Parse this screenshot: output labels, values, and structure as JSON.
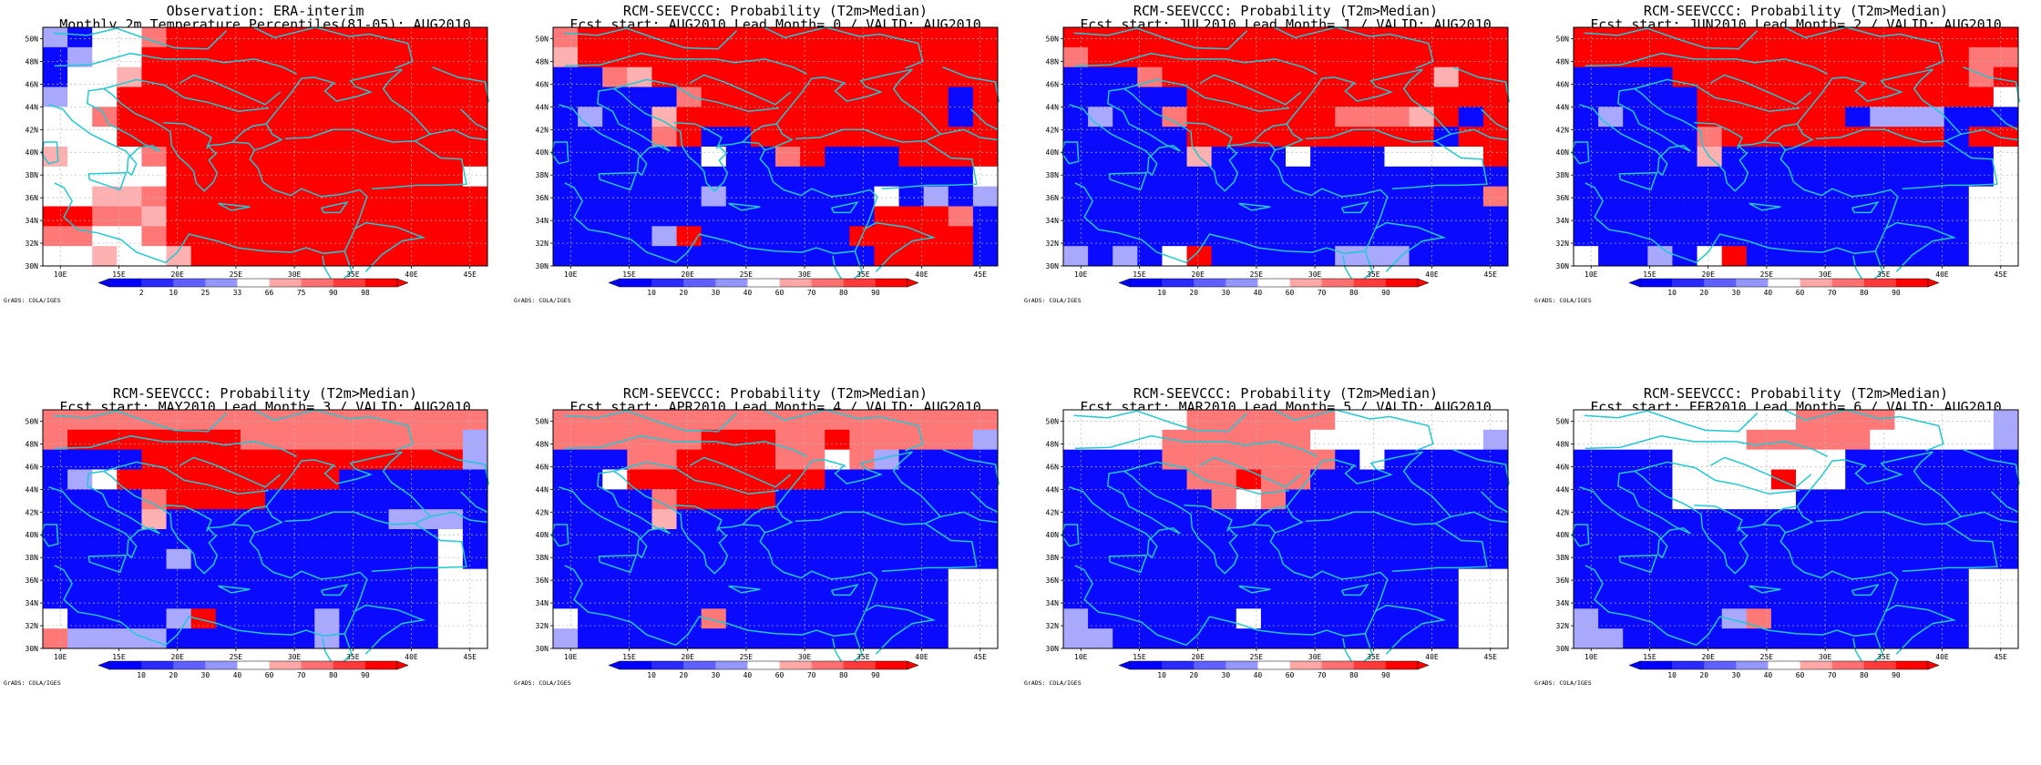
{
  "figure": {
    "credit": "GrADS: COLA/IGES"
  },
  "colors": {
    "coast": "#22c8d2",
    "grid": "#b8b8b8",
    "blue": "#0a0aff",
    "red": "#ff0000"
  },
  "chart_data": [
    {
      "type": "heatmap",
      "title": "Observation: ERA-interim",
      "subtitle": "Monthly 2m Temperature Percentiles(81-05): AUG2010",
      "lon_ticks": [
        "10E",
        "15E",
        "20E",
        "25E",
        "30E",
        "35E",
        "40E",
        "45E"
      ],
      "lat_ticks": [
        "30N",
        "32N",
        "34N",
        "36N",
        "38N",
        "40N",
        "42N",
        "44N",
        "46N",
        "48N",
        "50N"
      ],
      "lon_range": [
        8.5,
        46.5
      ],
      "lat_range": [
        30,
        51
      ],
      "colorbar": {
        "ticks": [
          "2",
          "10",
          "25",
          "33",
          "66",
          "75",
          "90",
          "98"
        ]
      },
      "grid_rows": [
        "cbwwqrrrrrrrrrrrrr",
        "bcwwrrrrrrrrrrrrrr",
        "bwwprrrrrrrrrrrrrr",
        "cwwrrrrrrrrrrrrrrr",
        "wwqrrrrrrrrrrrrrrr",
        "wwwrrrrrrrrrrrrrrr",
        "pwwwqrrrrrrrrrrrrr",
        "wwwwwrrrrrrrrrrrrw",
        "wwppqrrrrrrrrrrrrr",
        "rrqqprrrrrrrrrrrrr",
        "qqwwqrrrrrrrrrrrrr",
        "wwpwwprrrrrrrrrrrr"
      ]
    },
    {
      "type": "heatmap",
      "title": "RCM-SEEVCCC: Probability (T2m>Median)",
      "subtitle": "Fcst start: AUG2010   Lead Month= 0 / VALID: AUG2010",
      "lon_ticks": [
        "10E",
        "15E",
        "20E",
        "25E",
        "30E",
        "35E",
        "40E",
        "45E"
      ],
      "lat_ticks": [
        "30N",
        "32N",
        "34N",
        "36N",
        "38N",
        "40N",
        "42N",
        "44N",
        "46N",
        "48N",
        "50N"
      ],
      "lon_range": [
        8.5,
        46.5
      ],
      "lat_range": [
        30,
        51
      ],
      "colorbar": {
        "ticks": [
          "10",
          "20",
          "30",
          "40",
          "60",
          "70",
          "80",
          "90"
        ]
      },
      "grid_rows": [
        "qrrrrrrrrrrrrrrrrr",
        "prrrrrrrrrrrrrrrrr",
        "bbqprrrrrrrrrrrrrr",
        "bbbbbqrrrrrrrrrrbr",
        "bcbbprrrrrrrrrrrbr",
        "bbbbqrbbrrrrrrrrrr",
        "bbbbbbwbbqrbbbrrrr",
        "bbbbbbbbbbbbbbbbbw",
        "bbbbbbcbbbbbbwbcbc",
        "bbbbbbbbbbbbbrrrqb",
        "bbbbcrbbbbbbrrrrrb",
        "bbbbbbbbbbbbbrrrrb"
      ]
    },
    {
      "type": "heatmap",
      "title": "RCM-SEEVCCC: Probability (T2m>Median)",
      "subtitle": "Fcst start: JUL2010   Lead Month= 1 / VALID: AUG2010",
      "lon_ticks": [
        "10E",
        "15E",
        "20E",
        "25E",
        "30E",
        "35E",
        "40E",
        "45E"
      ],
      "lat_ticks": [
        "30N",
        "32N",
        "34N",
        "36N",
        "38N",
        "40N",
        "42N",
        "44N",
        "46N",
        "48N",
        "50N"
      ],
      "lon_range": [
        8.5,
        46.5
      ],
      "lat_range": [
        30,
        51
      ],
      "colorbar": {
        "ticks": [
          "10",
          "20",
          "30",
          "40",
          "60",
          "70",
          "80",
          "90"
        ]
      },
      "grid_rows": [
        "rrrrrrrrrrrrrrrrrr",
        "qrrrrrrrrrrrrrrrrr",
        "bbbqrrrrrrrrrrrprr",
        "bbbbbrrrrrrrrrrrrr",
        "bcbbqrrrrrrqqqprbr",
        "bbbbbrrrrrrrrrrbrr",
        "bbbbbpbbbwbbbwwwwr",
        "bbbbbbbbbbbbbbbbbb",
        "bbbbbbbbbbbbbbbbbq",
        "bbbbbbbbbbbbbbbbbb",
        "bbbbbbbbbbbbbbbbbb",
        "cbcbwrbbbbbcccbbbb"
      ]
    },
    {
      "type": "heatmap",
      "title": "RCM-SEEVCCC: Probability (T2m>Median)",
      "subtitle": "Fcst start: JUN2010   Lead Month= 2 / VALID: AUG2010",
      "lon_ticks": [
        "10E",
        "15E",
        "20E",
        "25E",
        "30E",
        "35E",
        "40E",
        "45E"
      ],
      "lat_ticks": [
        "30N",
        "32N",
        "34N",
        "36N",
        "38N",
        "40N",
        "42N",
        "44N",
        "46N",
        "48N",
        "50N"
      ],
      "lon_range": [
        8.5,
        46.5
      ],
      "lat_range": [
        30,
        51
      ],
      "colorbar": {
        "ticks": [
          "10",
          "20",
          "30",
          "40",
          "60",
          "70",
          "80",
          "90"
        ]
      },
      "grid_rows": [
        "rrrrrrrrrrrrrrrrrr",
        "rrrrrrrrrrrrrrrrqq",
        "bbbbrrrrrrrrrrrrqr",
        "bbbbbrrrrrrrrrrrrw",
        "bcbbbrrrrrrbcccbbb",
        "bbbbbqrrrrrrrrrbrr",
        "bbbbbpbbbbbbbbbbbw",
        "bbbbbbbbbbbbbbbbbw",
        "bbbbbbbbbbbbbbbbww",
        "bbbbbbbbbbbbbbbbww",
        "bbbbbbbbbbbbbbbbww",
        "wbbcbwrbbbbbbbbbww"
      ]
    },
    {
      "type": "heatmap",
      "title": "RCM-SEEVCCC: Probability (T2m>Median)",
      "subtitle": "Fcst start: MAY2010   Lead Month= 3 / VALID: AUG2010",
      "lon_ticks": [
        "10E",
        "15E",
        "20E",
        "25E",
        "30E",
        "35E",
        "40E",
        "45E"
      ],
      "lat_ticks": [
        "30N",
        "32N",
        "34N",
        "36N",
        "38N",
        "40N",
        "42N",
        "44N",
        "46N",
        "48N",
        "50N"
      ],
      "lon_range": [
        8.5,
        46.5
      ],
      "lat_range": [
        30,
        51
      ],
      "colorbar": {
        "ticks": [
          "10",
          "20",
          "30",
          "40",
          "60",
          "70",
          "80",
          "90"
        ]
      },
      "grid_rows": [
        "qqqqqqqqqqqqqqqqqq",
        "qrrrrrrrqqqqqqqqqc",
        "bbbbrrrrrrrrrrrrrc",
        "bcwrrrrrrrrrbbbbbb",
        "bbbbqrrrrbbbbbbbbb",
        "bbbbpbbbbbbbbbcccb",
        "bbbbbbbbbbbbbbbbwb",
        "bbbbbcbbbbbbbbbbwb",
        "bbbbbbbbbbbbbbbbww",
        "bbbbbbbbbbbbbbbbww",
        "wbbbbcrbbbbcbbbbww",
        "qccccbbbbbbcbbbbww"
      ]
    },
    {
      "type": "heatmap",
      "title": "RCM-SEEVCCC: Probability (T2m>Median)",
      "subtitle": "Fcst start: APR2010   Lead Month= 4 / VALID: AUG2010",
      "lon_ticks": [
        "10E",
        "15E",
        "20E",
        "25E",
        "30E",
        "35E",
        "40E",
        "45E"
      ],
      "lat_ticks": [
        "30N",
        "32N",
        "34N",
        "36N",
        "38N",
        "40N",
        "42N",
        "44N",
        "46N",
        "48N",
        "50N"
      ],
      "lon_range": [
        8.5,
        46.5
      ],
      "lat_range": [
        30,
        51
      ],
      "colorbar": {
        "ticks": [
          "10",
          "20",
          "30",
          "40",
          "60",
          "70",
          "80",
          "90"
        ]
      },
      "grid_rows": [
        "qqqqqqqqqqqqqqqqqq",
        "qqqqqqrrrqqrqqqqqc",
        "bbbqqrrrrqqwqcbbbb",
        "bbwrrrrrrrrbbbbbbb",
        "bbbbqrrrrbbbbbbbbb",
        "bbbbpbbbbbbbbbbbbb",
        "bbbbbbbbbbbbbbbbbb",
        "bbbbbbbbbbbbbbbbbb",
        "bbbbbbbbbbbbbbbbww",
        "bbbbbbbbbbbbbbbbww",
        "wbbbbbqbbbbbbbbbww",
        "cbbbbbbbbbbbbbbbww"
      ]
    },
    {
      "type": "heatmap",
      "title": "RCM-SEEVCCC: Probability (T2m>Median)",
      "subtitle": "Fcst start: MAR2010   Lead Month= 5 / VALID: AUG2010",
      "lon_ticks": [
        "10E",
        "15E",
        "20E",
        "25E",
        "30E",
        "35E",
        "40E",
        "45E"
      ],
      "lat_ticks": [
        "30N",
        "32N",
        "34N",
        "36N",
        "38N",
        "40N",
        "42N",
        "44N",
        "46N",
        "48N",
        "50N"
      ],
      "lon_range": [
        8.5,
        46.5
      ],
      "lat_range": [
        30,
        51
      ],
      "colorbar": {
        "ticks": [
          "10",
          "20",
          "30",
          "40",
          "60",
          "70",
          "80",
          "90"
        ]
      },
      "grid_rows": [
        "wwwwwqqqqqqwwwwwww",
        "wwwwqqqqqqwwwwwwwc",
        "bbbbqqqqqqqbwbbbbb",
        "bbbbbqqrqqbbbbbbbb",
        "bbbbbbqwqbbbbbbbbb",
        "bbbbbbbbbbbbbbbbbb",
        "bbbbbbbbbbbbbbbbbb",
        "bbbbbbbbbbbbbbbbbb",
        "bbbbbbbbbbbbbbbbww",
        "bbbbbbbbbbbbbbbbww",
        "cbbbbbbwbbbbbbbbww",
        "ccbbbbbbbbbbbbbbww"
      ]
    },
    {
      "type": "heatmap",
      "title": "RCM-SEEVCCC: Probability (T2m>Median)",
      "subtitle": "Fcst start: FEB2010   Lead Month= 6 / VALID: AUG2010",
      "lon_ticks": [
        "10E",
        "15E",
        "20E",
        "25E",
        "30E",
        "35E",
        "40E",
        "45E"
      ],
      "lat_ticks": [
        "30N",
        "32N",
        "34N",
        "36N",
        "38N",
        "40N",
        "42N",
        "44N",
        "46N",
        "48N",
        "50N"
      ],
      "lon_range": [
        8.5,
        46.5
      ],
      "lat_range": [
        30,
        51
      ],
      "colorbar": {
        "ticks": [
          "10",
          "20",
          "30",
          "40",
          "60",
          "70",
          "80",
          "90"
        ]
      },
      "grid_rows": [
        "wwwwwwwwwqqqqwwwwc",
        "wwwwwwwqqqqqwwwwwc",
        "bbbbwwwwwwwbbbbbbb",
        "bbbbwwwwrwwbbbbbbb",
        "bbbbwwwwwbbbbbbbbb",
        "bbbbbbbbbbbbbbbbbb",
        "bbbbbbbbbbbbbbbbbb",
        "bbbbbbbbbbbbbbbbbb",
        "bbbbbbbbbbbbbbbbww",
        "bbbbbbbbbbbbbbbbww",
        "cbbbbbcqbbbbbbbbww",
        "ccbbbbbbbbbbbbbbww"
      ]
    }
  ]
}
